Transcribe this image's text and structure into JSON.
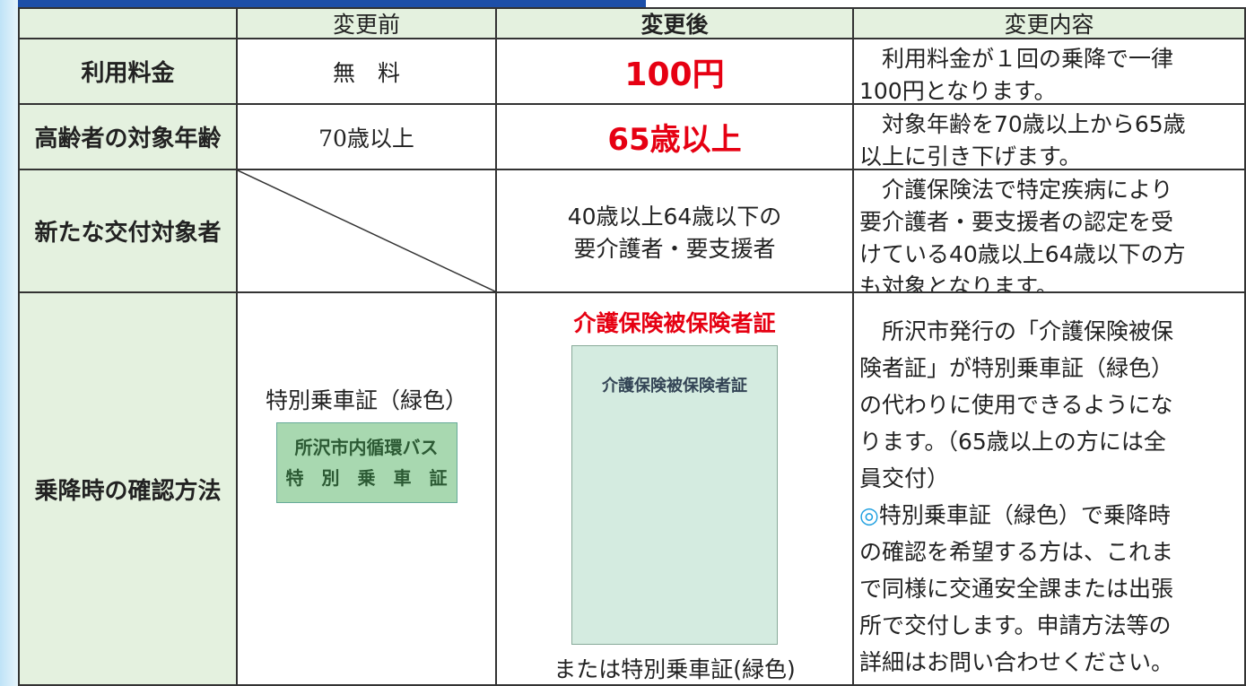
{
  "table": {
    "header": {
      "before": "変更前",
      "after": "変更後",
      "details": "変更内容"
    },
    "rows": [
      {
        "label": "利用料金",
        "before": "無　料",
        "after": "100円",
        "details": [
          "　利用料金が１回の乗降で一律",
          "100円となります。"
        ]
      },
      {
        "label": "高齢者の対象年齢",
        "before": "70歳以上",
        "after": "65歳以上",
        "details": [
          "　対象年齢を70歳以上から65歳",
          "以上に引き下げます。"
        ]
      },
      {
        "label": "新たな交付対象者",
        "after": [
          "40歳以上64歳以下の",
          "要介護者・要支援者"
        ],
        "details": [
          "　介護保険法で特定疾病により",
          "要介護者・要支援者の認定を受",
          "けている40歳以上64歳以下の方",
          "も対象となります。"
        ]
      },
      {
        "label": "乗降時の確認方法",
        "before": {
          "text": "特別乗車証（緑色）",
          "card": [
            "所沢市内循環バス",
            "特　別　乗　車　証"
          ]
        },
        "after": {
          "title": "介護保険被保険者証",
          "card": "介護保険被保険者証",
          "note": "または特別乗車証(緑色)"
        },
        "details": [
          "　所沢市発行の「介護保険被保",
          "険者証」が特別乗車証（緑色）",
          "の代わりに使用できるようにな",
          "ります。（65歳以上の方には全",
          "員交付）"
        ],
        "mark": "◎",
        "details2": [
          "特別乗車証（緑色）で乗降時",
          "の確認を希望する方は、これま",
          "で同様に交通安全課または出張",
          "所で交付します。申請方法等の",
          "詳細はお問い合わせください。"
        ]
      }
    ]
  }
}
